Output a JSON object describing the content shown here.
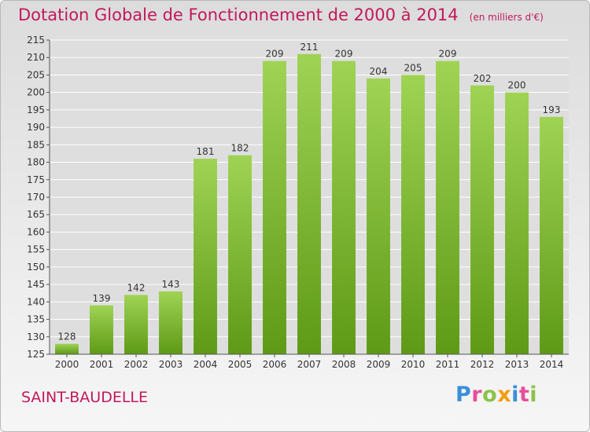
{
  "header": {
    "title": "Dotation Globale de Fonctionnement de 2000 à 2014",
    "unit": "(en milliers d'€)"
  },
  "footer": {
    "commune": "SAINT-BAUDELLE",
    "logo_text": "Proxiti",
    "logo_colors": [
      "#3a8fd8",
      "#e94f9a",
      "#8bc34a",
      "#f39c12",
      "#3a8fd8",
      "#e94f9a",
      "#8bc34a"
    ]
  },
  "colors": {
    "title": "#c2185b",
    "bar_top": "#9fd354",
    "bar_bottom": "#5e9a16",
    "grid": "#ffffff",
    "axis": "#555555"
  },
  "chart_data": {
    "type": "bar",
    "title": "Dotation Globale de Fonctionnement de 2000 à 2014",
    "subtitle": "(en milliers d'€)",
    "xlabel": "",
    "ylabel": "",
    "categories": [
      "2000",
      "2001",
      "2002",
      "2003",
      "2004",
      "2005",
      "2006",
      "2007",
      "2008",
      "2009",
      "2010",
      "2011",
      "2012",
      "2013",
      "2014"
    ],
    "values": [
      128,
      139,
      142,
      143,
      181,
      182,
      209,
      211,
      209,
      204,
      205,
      209,
      202,
      200,
      193
    ],
    "ylim": [
      125,
      215
    ],
    "yticks": [
      125,
      130,
      135,
      140,
      145,
      150,
      155,
      160,
      165,
      170,
      175,
      180,
      185,
      190,
      195,
      200,
      205,
      210,
      215
    ],
    "grid": true,
    "data_labels": true
  }
}
